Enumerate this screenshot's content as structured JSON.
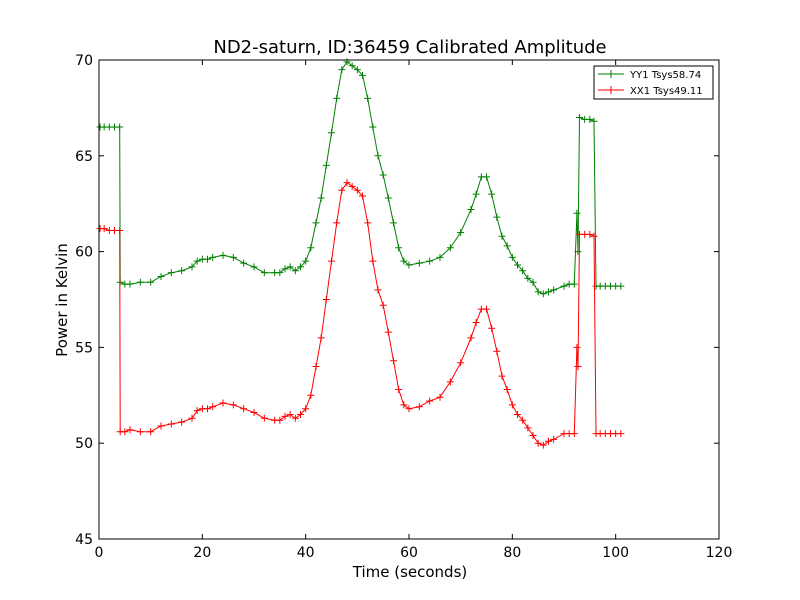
{
  "chart_data": {
    "type": "line",
    "title": "ND2-saturn, ID:36459 Calibrated Amplitude",
    "xlabel": "Time (seconds)",
    "ylabel": "Power in Kelvin",
    "xlim": [
      0,
      120
    ],
    "ylim": [
      45,
      70
    ],
    "xticks": [
      0,
      20,
      40,
      60,
      80,
      100,
      120
    ],
    "yticks": [
      45,
      50,
      55,
      60,
      65,
      70
    ],
    "xtick_labels": [
      "0",
      "20",
      "40",
      "60",
      "80",
      "100",
      "120"
    ],
    "ytick_labels": [
      "45",
      "50",
      "55",
      "60",
      "65",
      "70"
    ],
    "grid": false,
    "legend_position": "top-right",
    "marker": "+",
    "series": [
      {
        "name": "YY1 Tsys58.74",
        "color": "#008000",
        "points": [
          [
            0.2,
            66.5
          ],
          [
            1,
            66.5
          ],
          [
            2,
            66.5
          ],
          [
            3,
            66.5
          ],
          [
            4,
            66.5
          ],
          [
            4.1,
            58.4
          ],
          [
            5,
            58.3
          ],
          [
            6,
            58.3
          ],
          [
            8,
            58.4
          ],
          [
            10,
            58.4
          ],
          [
            12,
            58.7
          ],
          [
            14,
            58.9
          ],
          [
            16,
            59.0
          ],
          [
            18,
            59.2
          ],
          [
            19,
            59.5
          ],
          [
            20,
            59.6
          ],
          [
            21,
            59.6
          ],
          [
            22,
            59.7
          ],
          [
            24,
            59.8
          ],
          [
            26,
            59.7
          ],
          [
            28,
            59.4
          ],
          [
            30,
            59.2
          ],
          [
            32,
            58.9
          ],
          [
            34,
            58.9
          ],
          [
            35,
            58.9
          ],
          [
            36,
            59.1
          ],
          [
            37,
            59.2
          ],
          [
            38,
            59.0
          ],
          [
            39,
            59.2
          ],
          [
            40,
            59.5
          ],
          [
            41,
            60.2
          ],
          [
            42,
            61.5
          ],
          [
            43,
            62.8
          ],
          [
            44,
            64.5
          ],
          [
            45,
            66.2
          ],
          [
            46,
            68.0
          ],
          [
            47,
            69.5
          ],
          [
            48,
            69.9
          ],
          [
            49,
            69.7
          ],
          [
            50,
            69.5
          ],
          [
            51,
            69.2
          ],
          [
            52,
            68.0
          ],
          [
            53,
            66.5
          ],
          [
            54,
            65.0
          ],
          [
            55,
            64.0
          ],
          [
            56,
            62.8
          ],
          [
            57,
            61.5
          ],
          [
            58,
            60.2
          ],
          [
            59,
            59.5
          ],
          [
            60,
            59.3
          ],
          [
            62,
            59.4
          ],
          [
            64,
            59.5
          ],
          [
            66,
            59.7
          ],
          [
            68,
            60.2
          ],
          [
            70,
            61.0
          ],
          [
            72,
            62.2
          ],
          [
            73,
            63.0
          ],
          [
            74,
            63.9
          ],
          [
            75,
            63.9
          ],
          [
            76,
            63.0
          ],
          [
            77,
            61.8
          ],
          [
            78,
            60.8
          ],
          [
            79,
            60.3
          ],
          [
            80,
            59.7
          ],
          [
            81,
            59.3
          ],
          [
            82,
            59.0
          ],
          [
            83,
            58.6
          ],
          [
            84,
            58.4
          ],
          [
            85,
            57.9
          ],
          [
            86,
            57.8
          ],
          [
            87,
            57.9
          ],
          [
            88,
            58.0
          ],
          [
            90,
            58.2
          ],
          [
            91,
            58.3
          ],
          [
            92,
            58.3
          ],
          [
            92.5,
            62.0
          ],
          [
            92.7,
            60.0
          ],
          [
            93,
            67.0
          ],
          [
            94,
            66.9
          ],
          [
            95,
            66.9
          ],
          [
            95.8,
            66.8
          ],
          [
            96.2,
            58.2
          ],
          [
            97,
            58.2
          ],
          [
            98,
            58.2
          ],
          [
            99,
            58.2
          ],
          [
            100,
            58.2
          ],
          [
            101,
            58.2
          ]
        ]
      },
      {
        "name": "XX1 Tsys49.11",
        "color": "#ff0000",
        "points": [
          [
            0.2,
            61.2
          ],
          [
            1,
            61.2
          ],
          [
            2,
            61.1
          ],
          [
            3,
            61.1
          ],
          [
            4,
            61.1
          ],
          [
            4.1,
            50.6
          ],
          [
            5,
            50.6
          ],
          [
            6,
            50.7
          ],
          [
            8,
            50.6
          ],
          [
            10,
            50.6
          ],
          [
            12,
            50.9
          ],
          [
            14,
            51.0
          ],
          [
            16,
            51.1
          ],
          [
            18,
            51.3
          ],
          [
            19,
            51.7
          ],
          [
            20,
            51.8
          ],
          [
            21,
            51.8
          ],
          [
            22,
            51.9
          ],
          [
            24,
            52.1
          ],
          [
            26,
            52.0
          ],
          [
            28,
            51.8
          ],
          [
            30,
            51.6
          ],
          [
            32,
            51.3
          ],
          [
            34,
            51.2
          ],
          [
            35,
            51.2
          ],
          [
            36,
            51.4
          ],
          [
            37,
            51.5
          ],
          [
            38,
            51.3
          ],
          [
            39,
            51.5
          ],
          [
            40,
            51.8
          ],
          [
            41,
            52.5
          ],
          [
            42,
            54.0
          ],
          [
            43,
            55.5
          ],
          [
            44,
            57.5
          ],
          [
            45,
            59.5
          ],
          [
            46,
            61.5
          ],
          [
            47,
            63.2
          ],
          [
            48,
            63.6
          ],
          [
            49,
            63.4
          ],
          [
            50,
            63.2
          ],
          [
            51,
            62.9
          ],
          [
            52,
            61.5
          ],
          [
            53,
            59.5
          ],
          [
            54,
            58.0
          ],
          [
            55,
            57.2
          ],
          [
            56,
            55.8
          ],
          [
            57,
            54.3
          ],
          [
            58,
            52.8
          ],
          [
            59,
            52.0
          ],
          [
            60,
            51.8
          ],
          [
            62,
            51.9
          ],
          [
            64,
            52.2
          ],
          [
            66,
            52.4
          ],
          [
            68,
            53.2
          ],
          [
            70,
            54.2
          ],
          [
            72,
            55.5
          ],
          [
            73,
            56.3
          ],
          [
            74,
            57.0
          ],
          [
            75,
            57.0
          ],
          [
            76,
            56.0
          ],
          [
            77,
            54.8
          ],
          [
            78,
            53.5
          ],
          [
            79,
            52.8
          ],
          [
            80,
            52.0
          ],
          [
            81,
            51.5
          ],
          [
            82,
            51.2
          ],
          [
            83,
            50.8
          ],
          [
            84,
            50.4
          ],
          [
            85,
            50.0
          ],
          [
            86,
            49.9
          ],
          [
            87,
            50.1
          ],
          [
            88,
            50.2
          ],
          [
            90,
            50.5
          ],
          [
            91,
            50.5
          ],
          [
            92,
            50.5
          ],
          [
            92.5,
            55.0
          ],
          [
            92.7,
            54.0
          ],
          [
            93,
            60.9
          ],
          [
            94,
            60.9
          ],
          [
            95,
            60.9
          ],
          [
            95.8,
            60.8
          ],
          [
            96.2,
            50.5
          ],
          [
            97,
            50.5
          ],
          [
            98,
            50.5
          ],
          [
            99,
            50.5
          ],
          [
            100,
            50.5
          ],
          [
            101,
            50.5
          ]
        ]
      }
    ]
  }
}
